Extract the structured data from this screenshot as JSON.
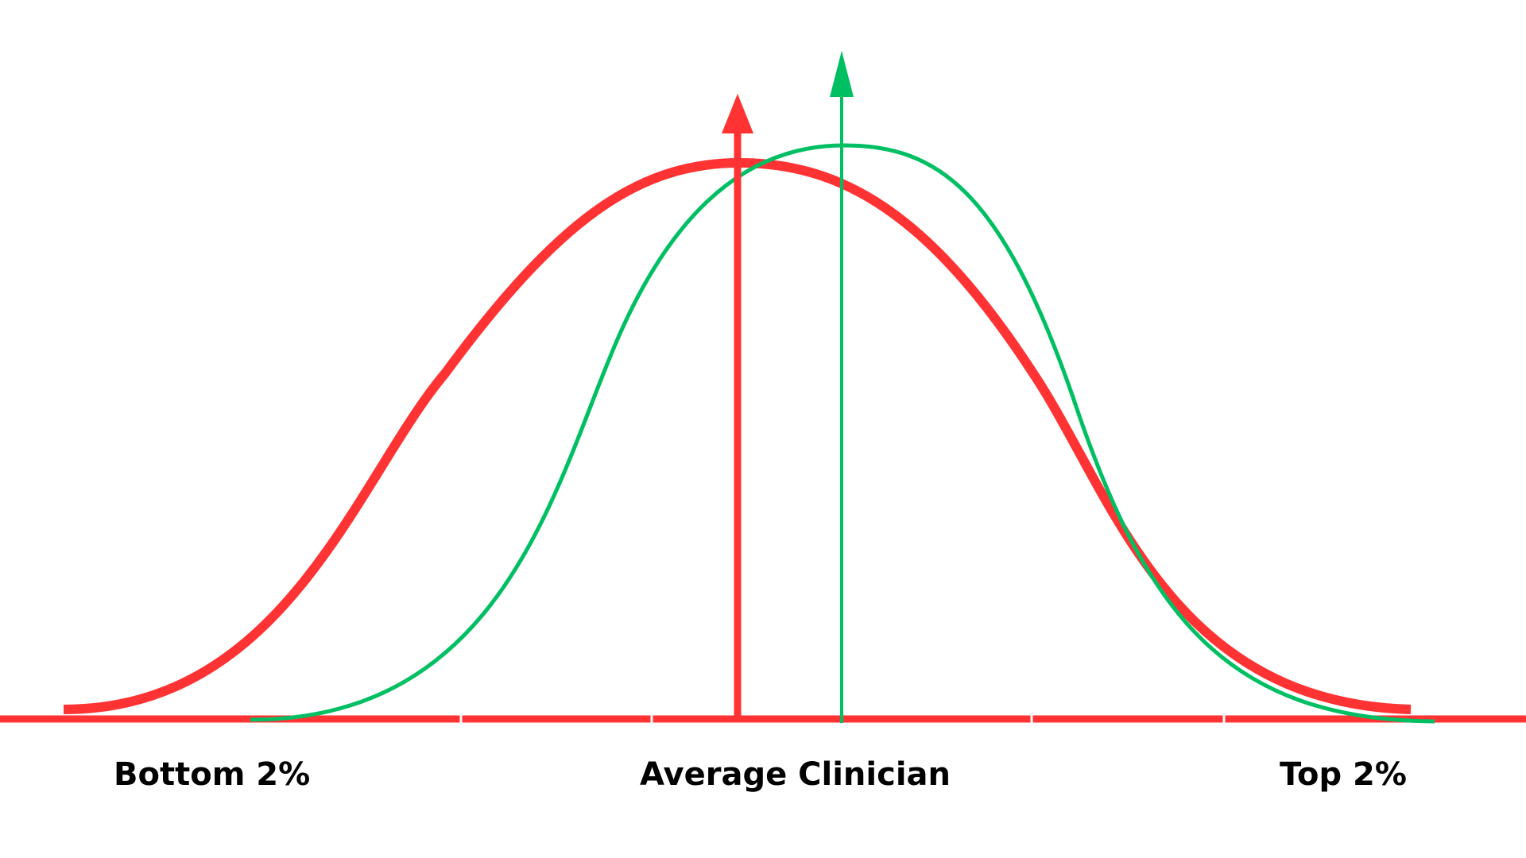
{
  "labels": {
    "bottom": "Bottom 2%",
    "average": "Average Clinician",
    "top": "Top 2%"
  },
  "colors": {
    "red": "#ff3333",
    "green": "#00bf63",
    "text": "#000000",
    "background": "#ffffff"
  }
}
